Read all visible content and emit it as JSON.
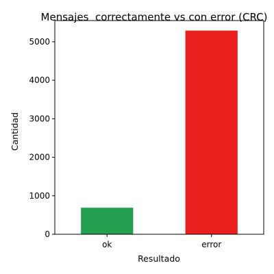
{
  "chart_data": {
    "type": "bar",
    "title": "Mensajes  correctamente vs con error (CRC)",
    "xlabel": "Resultado",
    "ylabel": "Cantidad",
    "categories": [
      "ok",
      "error"
    ],
    "values": [
      690,
      5290
    ],
    "colors": [
      "#22a050",
      "#ec1f1f"
    ],
    "ylim": [
      0,
      5550
    ],
    "yticks": [
      0,
      1000,
      2000,
      3000,
      4000,
      5000
    ],
    "yticklabels": [
      "0",
      "1000",
      "2000",
      "3000",
      "4000",
      "5000"
    ],
    "grid": false,
    "legend": "none"
  }
}
